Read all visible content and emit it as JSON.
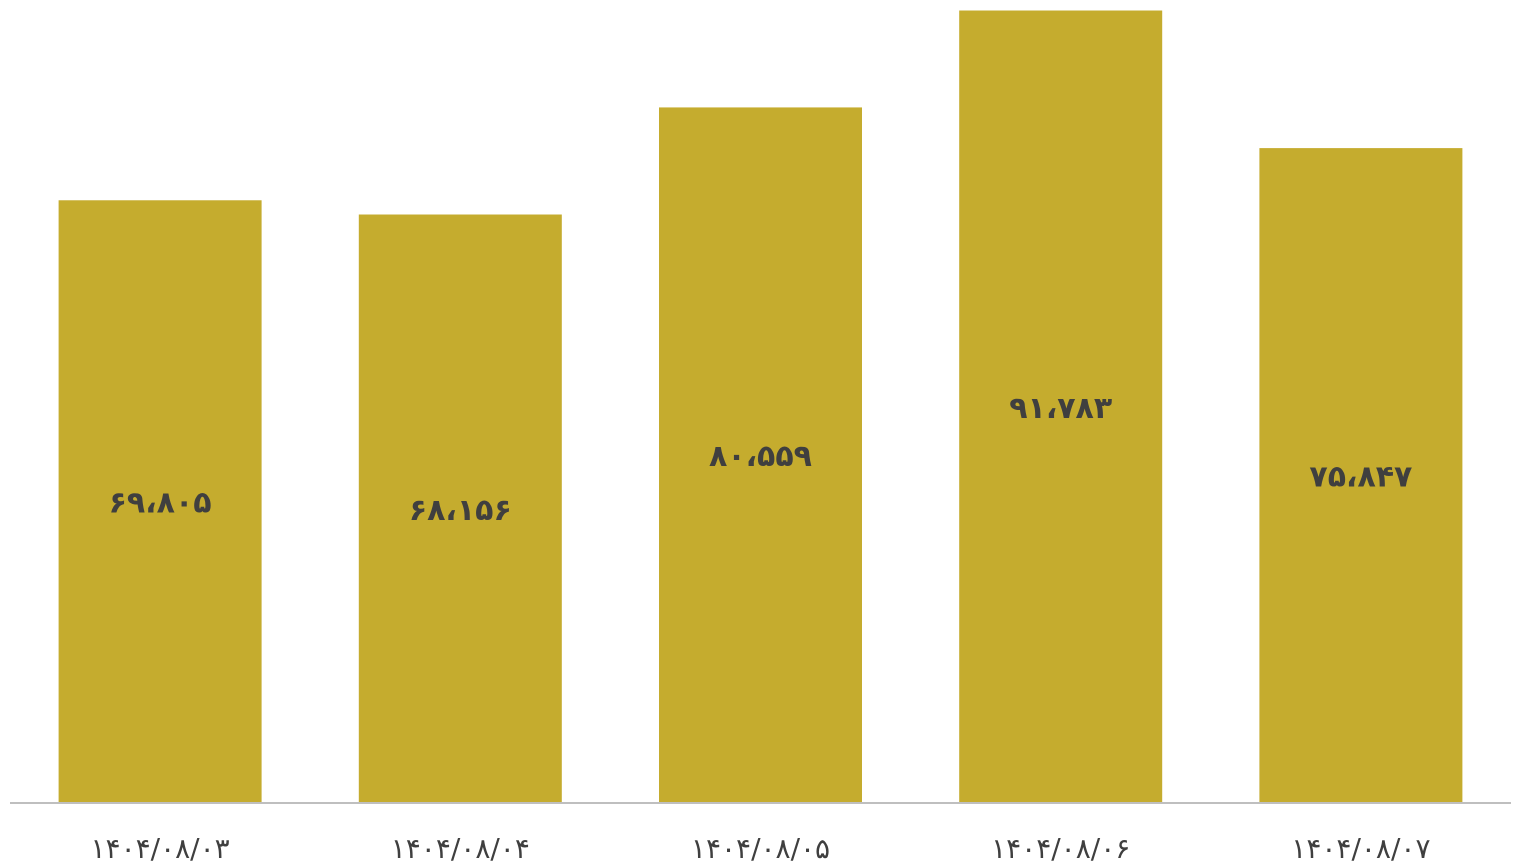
{
  "chart_data": {
    "type": "bar",
    "categories": [
      "۱۴۰۴/۰۸/۰۳",
      "۱۴۰۴/۰۸/۰۴",
      "۱۴۰۴/۰۸/۰۵",
      "۱۴۰۴/۰۸/۰۶",
      "۱۴۰۴/۰۸/۰۷"
    ],
    "values": [
      69805,
      68156,
      80559,
      91783,
      75847
    ],
    "value_labels": [
      "۶۹،۸۰۵",
      "۶۸،۱۵۶",
      "۸۰،۵۵۹",
      "۹۱،۷۸۳",
      "۷۵،۸۴۷"
    ],
    "title": "",
    "xlabel": "",
    "ylabel": "",
    "ylim": [
      0,
      93000
    ],
    "grid": false,
    "legend": "none",
    "colors": {
      "bar": "#c5ac2e",
      "axis": "#bfbfbf",
      "text": "#3f3f3f"
    }
  }
}
